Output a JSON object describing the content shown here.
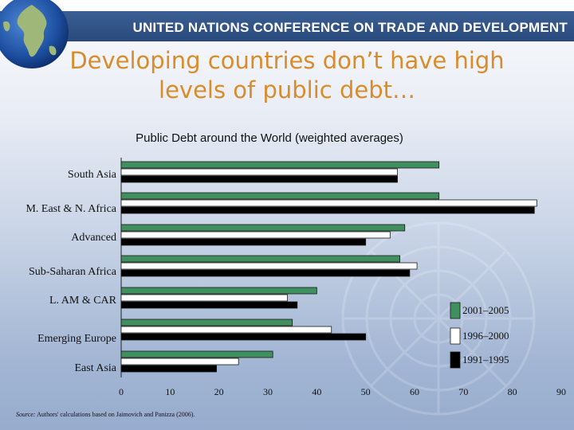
{
  "header": {
    "org_name": "UNITED NATIONS CONFERENCE ON TRADE AND DEVELOPMENT"
  },
  "slide": {
    "title_line1": "Developing countries don’t have high",
    "title_line2": "levels of public debt…"
  },
  "colors": {
    "header_bar": "#2e4f83",
    "title": "#d98c2b",
    "series_2001_2005": "#3f8f5f",
    "series_1996_2000": "#ffffff",
    "series_1991_1995": "#000000"
  },
  "source_note": {
    "label": "Source:",
    "text": "Authors' calculations based on Jaimovich and Panizza (2006)."
  },
  "chart_data": {
    "type": "bar",
    "orientation": "horizontal",
    "title": "Public Debt around the World (weighted averages)",
    "categories": [
      "South Asia",
      "M. East & N. Africa",
      "Advanced",
      "Sub-Saharan Africa",
      "L. AM & CAR",
      "Emerging Europe",
      "East Asia"
    ],
    "series": [
      {
        "name": "2001–2005",
        "color": "#3f8f5f",
        "values": [
          65,
          65,
          58,
          57,
          40,
          35,
          31
        ]
      },
      {
        "name": "1996–2000",
        "color": "#ffffff",
        "values": [
          56.5,
          85,
          55,
          60.5,
          34,
          43,
          24
        ]
      },
      {
        "name": "1991–1995",
        "color": "#000000",
        "values": [
          56.5,
          84.5,
          50,
          59,
          36,
          50,
          19.5
        ]
      }
    ],
    "xlim": [
      0,
      90
    ],
    "xticks": [
      "0",
      "10",
      "20",
      "30",
      "40",
      "50",
      "60",
      "70",
      "80",
      "90"
    ],
    "grid": false,
    "legend_position": "bottom-right"
  }
}
